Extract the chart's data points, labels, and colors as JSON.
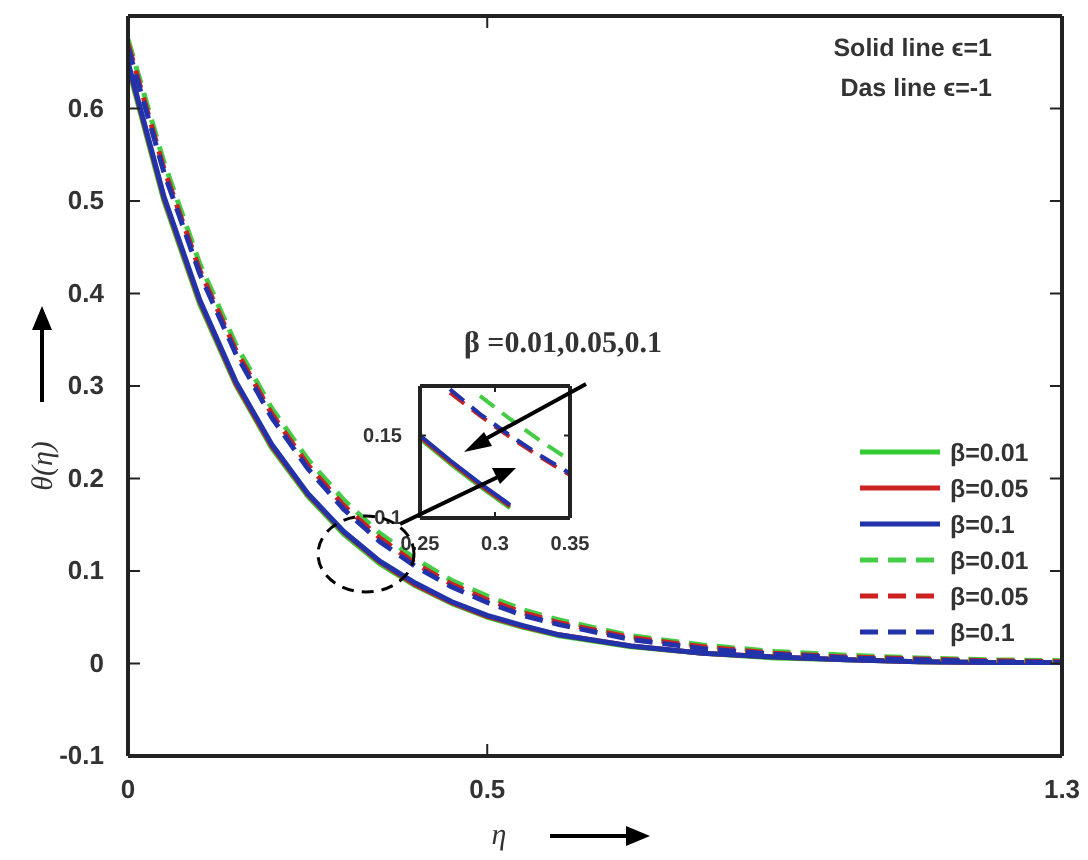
{
  "chart_data": [
    {
      "type": "line",
      "xlabel": "η",
      "ylabel": "θ(η)",
      "x": [
        0,
        0.05,
        0.1,
        0.15,
        0.2,
        0.25,
        0.3,
        0.35,
        0.4,
        0.45,
        0.5,
        0.55,
        0.6,
        0.7,
        0.8,
        0.9,
        1.0,
        1.1,
        1.2,
        1.3
      ],
      "xlim": [
        0,
        1.3
      ],
      "ylim": [
        -0.1,
        0.7
      ],
      "xticks": [
        0,
        0.5,
        1.3
      ],
      "yticks": [
        -0.1,
        0,
        0.1,
        0.2,
        0.3,
        0.4,
        0.5,
        0.6
      ],
      "legend": "right",
      "grid": false,
      "marker": "none",
      "annotations": [
        "Solid line ϵ=1",
        "Das line ϵ=-1",
        "β =0.01,0.05,0.1"
      ],
      "series": [
        {
          "name": "β=0.01",
          "color": "#33cc33",
          "line_style": "solid",
          "values": [
            0.645,
            0.5,
            0.388,
            0.301,
            0.233,
            0.181,
            0.14,
            0.108,
            0.084,
            0.065,
            0.05,
            0.039,
            0.03,
            0.018,
            0.011,
            0.006,
            0.004,
            0.002,
            0.001,
            0.001
          ]
        },
        {
          "name": "β=0.05",
          "color": "#cc2222",
          "line_style": "solid",
          "values": [
            0.648,
            0.503,
            0.391,
            0.303,
            0.235,
            0.183,
            0.142,
            0.11,
            0.085,
            0.066,
            0.051,
            0.04,
            0.031,
            0.019,
            0.011,
            0.007,
            0.004,
            0.002,
            0.001,
            0.001
          ]
        },
        {
          "name": "β=0.1",
          "color": "#2233aa",
          "line_style": "solid",
          "values": [
            0.65,
            0.505,
            0.393,
            0.305,
            0.237,
            0.184,
            0.143,
            0.111,
            0.087,
            0.067,
            0.052,
            0.041,
            0.031,
            0.019,
            0.011,
            0.007,
            0.004,
            0.002,
            0.001,
            0.001
          ]
        },
        {
          "name": "β=0.01",
          "color": "#44cc44",
          "line_style": "dashed",
          "values": [
            0.675,
            0.542,
            0.432,
            0.345,
            0.276,
            0.221,
            0.177,
            0.141,
            0.113,
            0.09,
            0.073,
            0.058,
            0.047,
            0.03,
            0.02,
            0.013,
            0.009,
            0.006,
            0.004,
            0.003
          ]
        },
        {
          "name": "β=0.05",
          "color": "#cc2222",
          "line_style": "dashed",
          "values": [
            0.67,
            0.535,
            0.425,
            0.339,
            0.27,
            0.215,
            0.171,
            0.136,
            0.108,
            0.086,
            0.069,
            0.055,
            0.044,
            0.028,
            0.018,
            0.011,
            0.007,
            0.005,
            0.003,
            0.002
          ]
        },
        {
          "name": "β=0.1",
          "color": "#2233aa",
          "line_style": "dashed",
          "values": [
            0.666,
            0.531,
            0.421,
            0.335,
            0.266,
            0.211,
            0.167,
            0.132,
            0.105,
            0.083,
            0.066,
            0.052,
            0.042,
            0.026,
            0.016,
            0.01,
            0.006,
            0.004,
            0.002,
            0.001
          ]
        }
      ]
    },
    {
      "type": "line",
      "x": [
        0.25,
        0.27,
        0.29,
        0.31,
        0.33,
        0.35
      ],
      "xlim": [
        0.25,
        0.35
      ],
      "ylim": [
        0.1,
        0.18
      ],
      "xticks": [
        0.25,
        0.3,
        0.35
      ],
      "yticks": [
        0.1,
        0.15
      ],
      "marker": "none",
      "grid": false,
      "series": [
        {
          "color": "#33cc33",
          "line_style": "solid",
          "values": [
            0.148,
            0.133,
            0.119,
            0.106,
            null,
            null
          ]
        },
        {
          "color": "#cc2222",
          "line_style": "solid",
          "values": [
            0.149,
            0.134,
            0.12,
            0.107,
            null,
            null
          ]
        },
        {
          "color": "#2233aa",
          "line_style": "solid",
          "values": [
            0.15,
            0.135,
            0.121,
            0.108,
            null,
            null
          ]
        },
        {
          "color": "#44cc44",
          "line_style": "dashed",
          "values": [
            null,
            null,
            0.174,
            0.16,
            0.147,
            0.135
          ]
        },
        {
          "color": "#cc2222",
          "line_style": "dashed",
          "values": [
            null,
            0.176,
            0.162,
            0.149,
            0.137,
            0.126
          ]
        },
        {
          "color": "#2233aa",
          "line_style": "dashed",
          "values": [
            null,
            0.178,
            0.163,
            0.15,
            0.138,
            0.127
          ]
        }
      ]
    }
  ]
}
